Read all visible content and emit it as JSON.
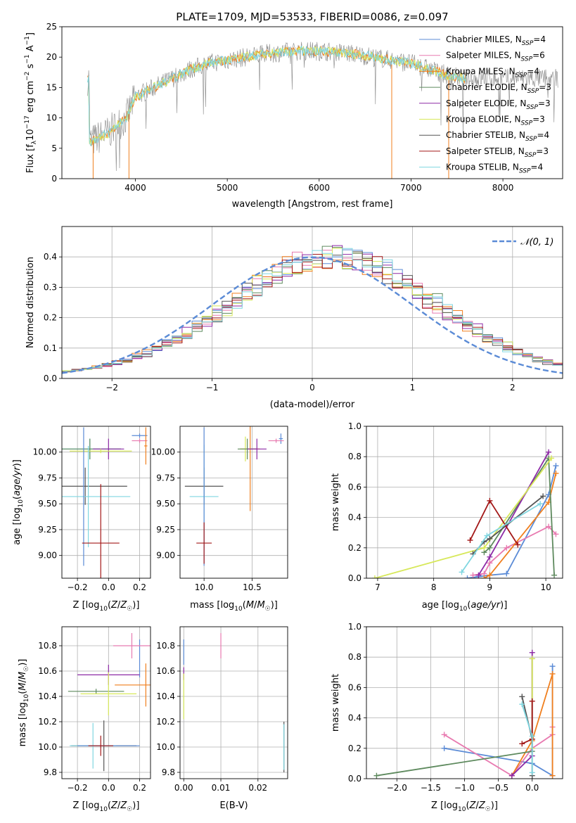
{
  "colors": {
    "chabrier_miles": "#5b8bd6",
    "salpeter_miles": "#e87ab0",
    "kroupa_miles": "#f07f1e",
    "chabrier_elodie": "#5e8a5e",
    "salpeter_elodie": "#8d2aa6",
    "kroupa_elodie": "#d7e85a",
    "chabrier_stelib": "#555555",
    "salpeter_stelib": "#a31818",
    "kroupa_stelib": "#7fd6e0",
    "normal": "#5b8bd6"
  },
  "chart_data": [
    {
      "id": "spectrum",
      "type": "line",
      "title": "PLATE=1709, MJD=53533, FIBERID=0086, z=0.097",
      "xlabel": "wavelength [Angstrom, rest frame]",
      "ylabel": "Flux [f_λ10^-17 erg cm^-2 s^-1 A^-1]",
      "xlim": [
        3200,
        8650
      ],
      "ylim": [
        0,
        25
      ],
      "xticks": [
        4000,
        5000,
        6000,
        7000,
        8000
      ],
      "yticks": [
        0,
        5,
        10,
        15,
        20,
        25
      ],
      "grid": false,
      "legend_position": "right",
      "legend": [
        {
          "label": "Chabrier MILES, N_SSP=4",
          "color": "chabrier_miles"
        },
        {
          "label": "Salpeter MILES, N_SSP=6",
          "color": "salpeter_miles"
        },
        {
          "label": "Kroupa MILES, N_SSP=4",
          "color": "kroupa_miles"
        },
        {
          "label": "Chabrier ELODIE, N_SSP=3",
          "color": "chabrier_elodie"
        },
        {
          "label": "Salpeter ELODIE, N_SSP=3",
          "color": "salpeter_elodie"
        },
        {
          "label": "Kroupa ELODIE, N_SSP=3",
          "color": "kroupa_elodie"
        },
        {
          "label": "Chabrier STELIB, N_SSP=4",
          "color": "chabrier_stelib"
        },
        {
          "label": "Salpeter STELIB, N_SSP=3",
          "color": "salpeter_stelib"
        },
        {
          "label": "Kroupa STELIB, N_SSP=4",
          "color": "kroupa_stelib"
        }
      ],
      "continuum": {
        "x": [
          3500,
          3700,
          3900,
          4000,
          4200,
          4400,
          4600,
          4800,
          5000,
          5200,
          5400,
          5600,
          5800,
          6000,
          6200,
          6400,
          6600,
          6800,
          7000,
          7200,
          7400,
          7600
        ],
        "y": [
          6,
          7.5,
          10,
          13.5,
          15,
          16.5,
          18,
          19,
          19.5,
          20,
          20.5,
          20.8,
          21,
          21,
          20.8,
          20.5,
          20,
          19.5,
          19,
          18,
          17,
          16.5
        ]
      }
    },
    {
      "id": "residuals",
      "type": "histogram",
      "xlabel": "(data-model)/error",
      "ylabel": "Normed distribution",
      "xlim": [
        -2.5,
        2.5
      ],
      "ylim": [
        0,
        0.5
      ],
      "xticks": [
        -2,
        -1,
        0,
        1,
        2
      ],
      "yticks": [
        0.0,
        0.1,
        0.2,
        0.3,
        0.4
      ],
      "grid": true,
      "legend_position": "top-right",
      "legend_label": "𝒩(0, 1)",
      "bin_width": 0.1,
      "curve": {
        "mean": 0.0,
        "std": 1.0,
        "style": "dashed"
      },
      "series_center_shift": 0.25,
      "series_width": 1.02
    },
    {
      "id": "age-vs-Z",
      "type": "errorbar",
      "xlabel": "Z [log10(Z/Z☉)]",
      "ylabel": "age  [log10(age/yr)]",
      "xlim": [
        -0.3,
        0.27
      ],
      "ylim": [
        8.78,
        10.25
      ],
      "xticks": [
        -0.2,
        0.0,
        0.2
      ],
      "xticklabels": [
        "−0.2",
        "0.0",
        "0.2"
      ],
      "yticks": [
        9.0,
        9.25,
        9.5,
        9.75,
        10.0
      ],
      "yticklabels": [
        "9.00",
        "9.25",
        "9.50",
        "9.75",
        "10.00"
      ],
      "grid": true,
      "points": [
        {
          "color": "chabrier_miles",
          "x": 0.2,
          "xerr": 0.05,
          "y": 10.16,
          "yerr": 0.02
        },
        {
          "color": "salpeter_miles",
          "x": 0.2,
          "xerr": 0.05,
          "y": 10.11,
          "yerr": 0.02
        },
        {
          "color": "kroupa_miles",
          "x": 0.24,
          "xerr": 0.01,
          "y": 10.06,
          "yerr": 0.18
        },
        {
          "color": "kroupa_stelib",
          "x": -0.12,
          "xerr": 0.2,
          "y": 10.03,
          "yerr": 0.1
        },
        {
          "color": "chabrier_elodie",
          "x": -0.12,
          "xerr": 0.2,
          "y": 10.03,
          "yerr": 0.1
        },
        {
          "color": "salpeter_elodie",
          "x": 0.0,
          "xerr": 0.1,
          "y": 10.03,
          "yerr": 0.1
        },
        {
          "color": "kroupa_elodie",
          "x": -0.05,
          "xerr": 0.2,
          "y": 10.01,
          "yerr": 0.02
        },
        {
          "color": "chabrier_stelib",
          "x": -0.15,
          "xerr": 0.27,
          "y": 9.67,
          "yerr": 0.18
        },
        {
          "color": "kroupa_stelib",
          "x": -0.13,
          "xerr": 0.27,
          "y": 9.57,
          "yerr": 0.49
        },
        {
          "color": "chabrier_miles",
          "x": -0.16,
          "xerr": 0.0,
          "y": 9.57,
          "yerr": 0.67
        },
        {
          "color": "salpeter_stelib",
          "x": -0.05,
          "xerr": 0.12,
          "y": 9.12,
          "yerr": 0.57
        }
      ]
    },
    {
      "id": "age-vs-mass",
      "type": "errorbar",
      "xlabel": "mass [log10(M/M☉)]",
      "xlim": [
        9.75,
        10.87
      ],
      "ylim": [
        8.78,
        10.25
      ],
      "xticks": [
        10.0,
        10.5
      ],
      "xticklabels": [
        "10.0",
        "10.5"
      ],
      "yticks": [
        9.0,
        9.25,
        9.5,
        9.75,
        10.0
      ],
      "yticklabels": [
        "9.00",
        "9.25",
        "9.50",
        "9.75",
        "10.00"
      ],
      "grid": true,
      "points": [
        {
          "color": "chabrier_miles",
          "x": 10.8,
          "xerr": 0.02,
          "y": 10.13,
          "yerr": 0.05
        },
        {
          "color": "salpeter_miles",
          "x": 10.75,
          "xerr": 0.08,
          "y": 10.11,
          "yerr": 0.02
        },
        {
          "color": "kroupa_miles",
          "x": 10.48,
          "xerr": 0.1,
          "y": 10.03,
          "yerr": 0.6
        },
        {
          "color": "kroupa_elodie",
          "x": 10.43,
          "xerr": 0.06,
          "y": 10.03,
          "yerr": 0.12
        },
        {
          "color": "chabrier_elodie",
          "x": 10.45,
          "xerr": 0.1,
          "y": 10.03,
          "yerr": 0.1
        },
        {
          "color": "salpeter_elodie",
          "x": 10.55,
          "xerr": 0.1,
          "y": 10.03,
          "yerr": 0.1
        },
        {
          "color": "chabrier_stelib",
          "x": 10.0,
          "xerr": 0.2,
          "y": 9.67,
          "yerr": 0.18
        },
        {
          "color": "kroupa_stelib",
          "x": 10.0,
          "xerr": 0.15,
          "y": 9.57,
          "yerr": 0.5
        },
        {
          "color": "chabrier_miles",
          "x": 10.0,
          "xerr": 0.0,
          "y": 9.57,
          "yerr": 0.67
        },
        {
          "color": "salpeter_stelib",
          "x": 10.0,
          "xerr": 0.08,
          "y": 9.12,
          "yerr": 0.2
        }
      ]
    },
    {
      "id": "massweight-vs-age",
      "type": "line",
      "xlabel": "age  [log10(age/yr)]",
      "ylabel": "mass weight",
      "xlim": [
        6.8,
        10.3
      ],
      "ylim": [
        0,
        1.0
      ],
      "xticks": [
        7,
        8,
        9,
        10
      ],
      "xticklabels": [
        "7",
        "8",
        "9",
        "10"
      ],
      "yticks": [
        0.0,
        0.2,
        0.4,
        0.6,
        0.8,
        1.0
      ],
      "yticklabels": [
        "0.0",
        "0.2",
        "0.4",
        "0.6",
        "0.8",
        "1.0"
      ],
      "grid": true,
      "series": [
        {
          "color": "chabrier_miles",
          "x": [
            8.6,
            8.8,
            9.0,
            9.3,
            10.05,
            10.18
          ],
          "y": [
            0.0,
            0.01,
            0.02,
            0.03,
            0.55,
            0.74
          ]
        },
        {
          "color": "salpeter_miles",
          "x": [
            8.7,
            8.9,
            9.0,
            9.3,
            10.05,
            10.18
          ],
          "y": [
            0.02,
            0.03,
            0.1,
            0.2,
            0.34,
            0.29
          ]
        },
        {
          "color": "kroupa_miles",
          "x": [
            8.9,
            9.0,
            10.05,
            10.18
          ],
          "y": [
            0.0,
            0.02,
            0.5,
            0.69
          ]
        },
        {
          "color": "chabrier_elodie",
          "x": [
            8.9,
            9.0,
            10.05,
            10.15
          ],
          "y": [
            0.17,
            0.2,
            0.79,
            0.02
          ]
        },
        {
          "color": "salpeter_elodie",
          "x": [
            8.8,
            9.0,
            10.05
          ],
          "y": [
            0.02,
            0.14,
            0.83
          ]
        },
        {
          "color": "kroupa_elodie",
          "x": [
            6.95,
            8.9,
            10.1
          ],
          "y": [
            0.0,
            0.2,
            0.79
          ]
        },
        {
          "color": "chabrier_stelib",
          "x": [
            8.7,
            8.9,
            9.0,
            9.95
          ],
          "y": [
            0.16,
            0.24,
            0.26,
            0.54
          ]
        },
        {
          "color": "salpeter_stelib",
          "x": [
            8.65,
            9.0,
            9.5
          ],
          "y": [
            0.25,
            0.51,
            0.22
          ]
        },
        {
          "color": "kroupa_stelib",
          "x": [
            8.5,
            8.95,
            9.9
          ],
          "y": [
            0.04,
            0.28,
            0.49
          ]
        }
      ]
    },
    {
      "id": "mass-vs-Z",
      "type": "errorbar",
      "xlabel": "Z [log10(Z/Z☉)]",
      "ylabel": "mass [log10(M/M☉)]",
      "xlim": [
        -0.3,
        0.27
      ],
      "ylim": [
        9.75,
        10.95
      ],
      "xticks": [
        -0.2,
        0.0,
        0.2
      ],
      "xticklabels": [
        "−0.2",
        "0.0",
        "0.2"
      ],
      "yticks": [
        9.8,
        10.0,
        10.2,
        10.4,
        10.6,
        10.8
      ],
      "yticklabels": [
        "9.8",
        "10.0",
        "10.2",
        "10.4",
        "10.6",
        "10.8"
      ],
      "grid": true,
      "points": [
        {
          "color": "chabrier_miles",
          "x": 0.2,
          "xerr": 0.0,
          "y": 10.7,
          "yerr": 0.15
        },
        {
          "color": "salpeter_miles",
          "x": 0.15,
          "xerr": 0.12,
          "y": 10.8,
          "yerr": 0.1
        },
        {
          "color": "kroupa_miles",
          "x": 0.24,
          "xerr": 0.2,
          "y": 10.49,
          "yerr": 0.17
        },
        {
          "color": "salpeter_elodie",
          "x": 0.0,
          "xerr": 0.2,
          "y": 10.57,
          "yerr": 0.08
        },
        {
          "color": "chabrier_elodie",
          "x": -0.08,
          "xerr": 0.18,
          "y": 10.44,
          "yerr": 0.02
        },
        {
          "color": "kroupa_elodie",
          "x": 0.0,
          "xerr": 0.18,
          "y": 10.42,
          "yerr": 0.17
        },
        {
          "color": "chabrier_stelib",
          "x": -0.03,
          "xerr": 0.21,
          "y": 10.01,
          "yerr": 0.2
        },
        {
          "color": "kroupa_stelib",
          "x": -0.1,
          "xerr": 0.15,
          "y": 10.01,
          "yerr": 0.18
        },
        {
          "color": "chabrier_miles",
          "x": 0.0,
          "xerr": 0.2,
          "y": 10.01,
          "yerr": 0.0
        },
        {
          "color": "salpeter_stelib",
          "x": -0.05,
          "xerr": 0.08,
          "y": 10.01,
          "yerr": 0.08
        }
      ]
    },
    {
      "id": "mass-vs-ebv",
      "type": "errorbar",
      "xlabel": "E(B-V)",
      "xlim": [
        -0.001,
        0.028
      ],
      "ylim": [
        9.75,
        10.95
      ],
      "xticks": [
        0.0,
        0.01,
        0.02
      ],
      "xticklabels": [
        "0.00",
        "0.01",
        "0.02"
      ],
      "yticks": [
        9.8,
        10.0,
        10.2,
        10.4,
        10.6,
        10.8
      ],
      "yticklabels": [
        "9.8",
        "10.0",
        "10.2",
        "10.4",
        "10.6",
        "10.8"
      ],
      "grid": true,
      "points": [
        {
          "color": "chabrier_miles",
          "x": 0.0,
          "xerr": 0.0,
          "y": 10.75,
          "yerr": 0.1
        },
        {
          "color": "salpeter_miles",
          "x": 0.01,
          "xerr": 0.0,
          "y": 10.8,
          "yerr": 0.1
        },
        {
          "color": "salpeter_elodie",
          "x": 0.0,
          "xerr": 0.0,
          "y": 10.58,
          "yerr": 0.05
        },
        {
          "color": "kroupa_elodie",
          "x": 0.0,
          "xerr": 0.0,
          "y": 10.4,
          "yerr": 0.18
        },
        {
          "color": "chabrier_stelib",
          "x": 0.027,
          "xerr": 0.0,
          "y": 10.0,
          "yerr": 0.2
        },
        {
          "color": "kroupa_stelib",
          "x": 0.027,
          "xerr": 0.0,
          "y": 10.0,
          "yerr": 0.18
        }
      ]
    },
    {
      "id": "massweight-vs-Z",
      "type": "line",
      "xlabel": "Z [log10(Z/Z☉)]",
      "ylabel": "mass weight",
      "xlim": [
        -2.45,
        0.45
      ],
      "ylim": [
        0,
        1.0
      ],
      "xticks": [
        -2.0,
        -1.5,
        -1.0,
        -0.5,
        0.0
      ],
      "xticklabels": [
        "−2.0",
        "−1.5",
        "−1.0",
        "−0.5",
        "0.0"
      ],
      "yticks": [
        0.0,
        0.2,
        0.4,
        0.6,
        0.8,
        1.0
      ],
      "yticklabels": [
        "0.0",
        "0.2",
        "0.4",
        "0.6",
        "0.8",
        "1.0"
      ],
      "grid": true,
      "series": [
        {
          "color": "chabrier_miles",
          "x": [
            -1.3,
            0.0,
            0.3,
            0.3
          ],
          "y": [
            0.2,
            0.1,
            0.02,
            0.74
          ]
        },
        {
          "color": "salpeter_miles",
          "x": [
            -1.3,
            -0.3,
            0.0,
            0.3,
            0.3
          ],
          "y": [
            0.29,
            0.02,
            0.2,
            0.29,
            0.34
          ]
        },
        {
          "color": "kroupa_miles",
          "x": [
            -0.3,
            0.0,
            0.3,
            0.3
          ],
          "y": [
            0.02,
            0.25,
            0.69,
            0.02
          ]
        },
        {
          "color": "chabrier_elodie",
          "x": [
            -2.3,
            0.0,
            0.0
          ],
          "y": [
            0.02,
            0.18,
            0.79
          ]
        },
        {
          "color": "salpeter_elodie",
          "x": [
            -0.3,
            0.0,
            0.0
          ],
          "y": [
            0.02,
            0.15,
            0.83
          ]
        },
        {
          "color": "kroupa_elodie",
          "x": [
            0.0,
            0.0
          ],
          "y": [
            0.2,
            0.79
          ]
        },
        {
          "color": "chabrier_stelib",
          "x": [
            -0.15,
            0.0,
            0.0
          ],
          "y": [
            0.54,
            0.26,
            0.02
          ]
        },
        {
          "color": "salpeter_stelib",
          "x": [
            -0.15,
            0.0,
            0.0
          ],
          "y": [
            0.23,
            0.26,
            0.51
          ]
        },
        {
          "color": "kroupa_stelib",
          "x": [
            -0.15,
            0.0,
            0.0
          ],
          "y": [
            0.49,
            0.28,
            0.04
          ]
        }
      ]
    }
  ]
}
